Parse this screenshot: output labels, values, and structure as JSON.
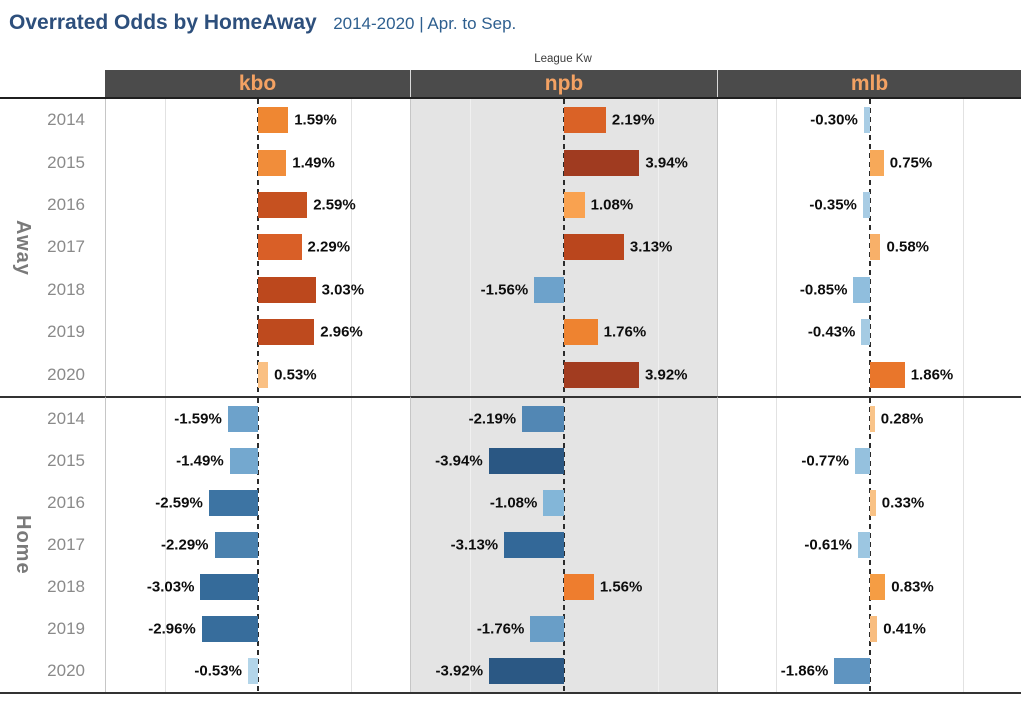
{
  "title": {
    "main": "Overrated Odds by HomeAway",
    "subtitle": "2014-2020 | Apr. to Sep."
  },
  "field_label": "League Kw",
  "columns": [
    "kbo",
    "npb",
    "mlb"
  ],
  "row_axis": {
    "groups": [
      "Away",
      "Home"
    ]
  },
  "years": [
    "2014",
    "2015",
    "2016",
    "2017",
    "2018",
    "2019",
    "2020"
  ],
  "palette": {
    "title_text": "#2d4f7c",
    "subtitle_text": "#2e5f8f",
    "header_bg": "#4b4b4b",
    "header_text": "#f4a263",
    "shaded_pane_bg": "#e4e4e4",
    "year_text": "#8a8a8a",
    "group_label_text": "#7a7a7a",
    "zero_line": "#2b2b2b",
    "positive_max": "#a03b20",
    "negative_max": "#2a5783"
  },
  "chart_data": {
    "type": "bar",
    "orientation": "horizontal-diverging",
    "title": "Overrated Odds by HomeAway 2014-2020 | Apr. to Sep.",
    "column_field": "League Kw",
    "row_groups": [
      "Away",
      "Home"
    ],
    "categories": [
      "2014",
      "2015",
      "2016",
      "2017",
      "2018",
      "2019",
      "2020"
    ],
    "value_axis": {
      "unit": "%",
      "min": -8,
      "max": 8,
      "gridlines": [
        -5,
        5
      ],
      "zero_reference_line": true
    },
    "panes": [
      {
        "league": "kbo",
        "shaded": false,
        "away": [
          {
            "year": "2014",
            "value": 1.59,
            "label": "1.59%",
            "color": "#ef8732"
          },
          {
            "year": "2015",
            "value": 1.49,
            "label": "1.49%",
            "color": "#f18d3a"
          },
          {
            "year": "2016",
            "value": 2.59,
            "label": "2.59%",
            "color": "#c65120"
          },
          {
            "year": "2017",
            "value": 2.29,
            "label": "2.29%",
            "color": "#d95f27"
          },
          {
            "year": "2018",
            "value": 3.03,
            "label": "3.03%",
            "color": "#bc481d"
          },
          {
            "year": "2019",
            "value": 2.96,
            "label": "2.96%",
            "color": "#be4a1e"
          },
          {
            "year": "2020",
            "value": 0.53,
            "label": "0.53%",
            "color": "#fac083"
          }
        ],
        "home": [
          {
            "year": "2014",
            "value": -1.59,
            "label": "-1.59%",
            "color": "#6da2cb"
          },
          {
            "year": "2015",
            "value": -1.49,
            "label": "-1.49%",
            "color": "#74a8cf"
          },
          {
            "year": "2016",
            "value": -2.59,
            "label": "-2.59%",
            "color": "#3d74a3"
          },
          {
            "year": "2017",
            "value": -2.29,
            "label": "-2.29%",
            "color": "#4a81ae"
          },
          {
            "year": "2018",
            "value": -3.03,
            "label": "-3.03%",
            "color": "#356b9a"
          },
          {
            "year": "2019",
            "value": -2.96,
            "label": "-2.96%",
            "color": "#376d9c"
          },
          {
            "year": "2020",
            "value": -0.53,
            "label": "-0.53%",
            "color": "#b3d5e9"
          }
        ]
      },
      {
        "league": "npb",
        "shaded": true,
        "away": [
          {
            "year": "2014",
            "value": 2.19,
            "label": "2.19%",
            "color": "#da6226"
          },
          {
            "year": "2015",
            "value": 3.94,
            "label": "3.94%",
            "color": "#a03b20"
          },
          {
            "year": "2016",
            "value": 1.08,
            "label": "1.08%",
            "color": "#f9a250"
          },
          {
            "year": "2017",
            "value": 3.13,
            "label": "3.13%",
            "color": "#ba461d"
          },
          {
            "year": "2018",
            "value": -1.56,
            "label": "-1.56%",
            "color": "#6da2cb"
          },
          {
            "year": "2019",
            "value": 1.76,
            "label": "1.76%",
            "color": "#ee8330"
          },
          {
            "year": "2020",
            "value": 3.92,
            "label": "3.92%",
            "color": "#a23c20"
          }
        ],
        "home": [
          {
            "year": "2014",
            "value": -2.19,
            "label": "-2.19%",
            "color": "#5287b4"
          },
          {
            "year": "2015",
            "value": -3.94,
            "label": "-3.94%",
            "color": "#2a5783"
          },
          {
            "year": "2016",
            "value": -1.08,
            "label": "-1.08%",
            "color": "#83b6d8"
          },
          {
            "year": "2017",
            "value": -3.13,
            "label": "-3.13%",
            "color": "#336898"
          },
          {
            "year": "2018",
            "value": 1.56,
            "label": "1.56%",
            "color": "#ee7d2e"
          },
          {
            "year": "2019",
            "value": -1.76,
            "label": "-1.76%",
            "color": "#699ec7"
          },
          {
            "year": "2020",
            "value": -3.92,
            "label": "-3.92%",
            "color": "#2b5884"
          }
        ]
      },
      {
        "league": "mlb",
        "shaded": false,
        "away": [
          {
            "year": "2014",
            "value": -0.3,
            "label": "-0.30%",
            "color": "#a9cde5"
          },
          {
            "year": "2015",
            "value": 0.75,
            "label": "0.75%",
            "color": "#f7a959"
          },
          {
            "year": "2016",
            "value": -0.35,
            "label": "-0.35%",
            "color": "#a8cce4"
          },
          {
            "year": "2017",
            "value": 0.58,
            "label": "0.58%",
            "color": "#f8b069"
          },
          {
            "year": "2018",
            "value": -0.85,
            "label": "-0.85%",
            "color": "#90bedd"
          },
          {
            "year": "2019",
            "value": -0.43,
            "label": "-0.43%",
            "color": "#a5cbe3"
          },
          {
            "year": "2020",
            "value": 1.86,
            "label": "1.86%",
            "color": "#e9762b"
          }
        ],
        "home": [
          {
            "year": "2014",
            "value": 0.28,
            "label": "0.28%",
            "color": "#f9c489"
          },
          {
            "year": "2015",
            "value": -0.77,
            "label": "-0.77%",
            "color": "#95c1de"
          },
          {
            "year": "2016",
            "value": 0.33,
            "label": "0.33%",
            "color": "#f9c285"
          },
          {
            "year": "2017",
            "value": -0.61,
            "label": "-0.61%",
            "color": "#9cc6e1"
          },
          {
            "year": "2018",
            "value": 0.83,
            "label": "0.83%",
            "color": "#f59d44"
          },
          {
            "year": "2019",
            "value": 0.41,
            "label": "0.41%",
            "color": "#f8bd80"
          },
          {
            "year": "2020",
            "value": -1.86,
            "label": "-1.86%",
            "color": "#5f94c0"
          }
        ]
      }
    ]
  }
}
